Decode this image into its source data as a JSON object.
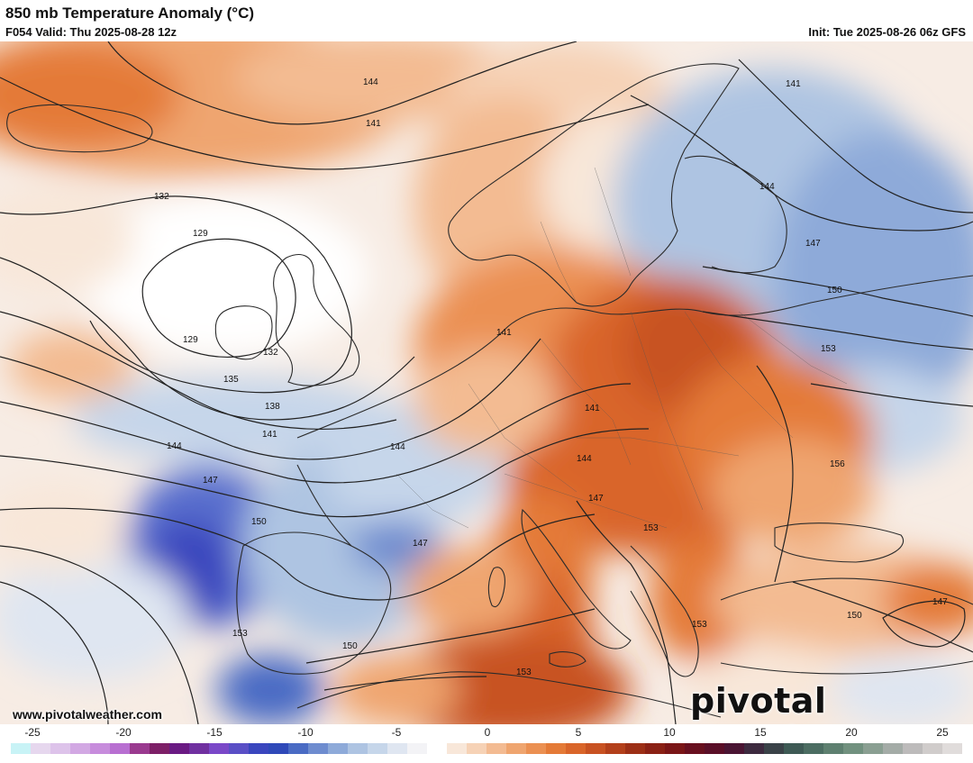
{
  "header": {
    "title": "850 mb Temperature Anomaly (°C)",
    "valid": "F054 Valid: Thu 2025-08-28 12z",
    "init": "Init: Tue 2025-08-26 06z GFS"
  },
  "footer": {
    "url": "www.pivotalweather.com",
    "brand": "pivotal weather"
  },
  "colorbar": {
    "ticks": [
      "-25",
      "-20",
      "-15",
      "-10",
      "-5",
      "0",
      "5",
      "10",
      "15",
      "20",
      "25"
    ],
    "colors": [
      "#c8f3f6",
      "#e6d7ee",
      "#ddc3ea",
      "#d2a8e3",
      "#c78cdc",
      "#b86fd1",
      "#9a3a8f",
      "#7d1f67",
      "#6a1a83",
      "#7030a0",
      "#7a48c8",
      "#5a4fc6",
      "#3a46be",
      "#2f49b9",
      "#4a6bc4",
      "#6e8ccf",
      "#8eaad9",
      "#aec4e2",
      "#c6d6ea",
      "#dfe6f1",
      "#f3f3f6",
      "#ffffff",
      "#f8e7d9",
      "#f6d2b6",
      "#f3bb92",
      "#efa56f",
      "#eb9052",
      "#e47a37",
      "#d9652a",
      "#c85222",
      "#b3401b",
      "#9c2f16",
      "#8a2115",
      "#7a1617",
      "#68101f",
      "#5a0f28",
      "#4a1533",
      "#3d2a3f",
      "#3a4248",
      "#3e5a55",
      "#4c6d62",
      "#5e8070",
      "#71917f",
      "#8a9f92",
      "#a4aca7",
      "#bdbbbb",
      "#d0cccb",
      "#e0dcdb"
    ]
  },
  "map": {
    "contour_labels": [
      "144",
      "141",
      "132",
      "129",
      "129",
      "132",
      "135",
      "138",
      "141",
      "144",
      "147",
      "150",
      "153",
      "141",
      "144",
      "147",
      "150",
      "153",
      "141",
      "144",
      "147",
      "150",
      "150",
      "153",
      "156",
      "153",
      "150",
      "153",
      "147",
      "147",
      "150",
      "144",
      "141"
    ]
  }
}
